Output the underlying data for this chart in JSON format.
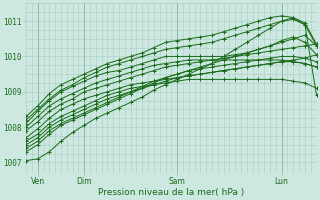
{
  "bg_color": "#cce8e0",
  "grid_color": "#aaccC4",
  "line_color": "#1a6b1a",
  "title": "Pression niveau de la mer( hPa )",
  "ylabel_ticks": [
    1007,
    1008,
    1009,
    1010,
    1011
  ],
  "ylim": [
    1006.7,
    1011.5
  ],
  "xlim": [
    0,
    100
  ],
  "xtick_positions": [
    4,
    20,
    52,
    88
  ],
  "xtick_labels": [
    "Ven",
    "Dim",
    "Sam",
    "Lun"
  ],
  "vlines": [
    4,
    20,
    52,
    88
  ],
  "n_points": 100,
  "series": [
    {
      "points": [
        [
          0,
          1007.05
        ],
        [
          4,
          1007.1
        ],
        [
          8,
          1007.3
        ],
        [
          12,
          1007.6
        ],
        [
          16,
          1007.85
        ],
        [
          20,
          1008.05
        ],
        [
          24,
          1008.25
        ],
        [
          28,
          1008.4
        ],
        [
          32,
          1008.55
        ],
        [
          36,
          1008.7
        ],
        [
          40,
          1008.85
        ],
        [
          44,
          1009.05
        ],
        [
          48,
          1009.2
        ],
        [
          52,
          1009.35
        ],
        [
          56,
          1009.5
        ],
        [
          60,
          1009.65
        ],
        [
          64,
          1009.8
        ],
        [
          68,
          1010.0
        ],
        [
          72,
          1010.2
        ],
        [
          76,
          1010.4
        ],
        [
          80,
          1010.6
        ],
        [
          84,
          1010.8
        ],
        [
          88,
          1011.0
        ],
        [
          92,
          1011.1
        ],
        [
          96,
          1010.9
        ],
        [
          100,
          1008.9
        ]
      ]
    },
    {
      "points": [
        [
          0,
          1007.3
        ],
        [
          4,
          1007.5
        ],
        [
          8,
          1007.8
        ],
        [
          12,
          1008.05
        ],
        [
          16,
          1008.2
        ],
        [
          20,
          1008.35
        ],
        [
          24,
          1008.5
        ],
        [
          28,
          1008.65
        ],
        [
          32,
          1008.8
        ],
        [
          36,
          1008.95
        ],
        [
          40,
          1009.1
        ],
        [
          44,
          1009.25
        ],
        [
          48,
          1009.4
        ],
        [
          52,
          1009.5
        ],
        [
          56,
          1009.6
        ],
        [
          60,
          1009.7
        ],
        [
          64,
          1009.8
        ],
        [
          68,
          1009.9
        ],
        [
          72,
          1010.0
        ],
        [
          76,
          1010.1
        ],
        [
          80,
          1010.2
        ],
        [
          84,
          1010.3
        ],
        [
          88,
          1010.45
        ],
        [
          92,
          1010.55
        ],
        [
          96,
          1010.4
        ],
        [
          100,
          1010.05
        ]
      ]
    },
    {
      "points": [
        [
          0,
          1007.4
        ],
        [
          4,
          1007.6
        ],
        [
          8,
          1007.9
        ],
        [
          12,
          1008.1
        ],
        [
          16,
          1008.25
        ],
        [
          20,
          1008.4
        ],
        [
          24,
          1008.55
        ],
        [
          28,
          1008.7
        ],
        [
          32,
          1008.85
        ],
        [
          36,
          1009.0
        ],
        [
          40,
          1009.15
        ],
        [
          44,
          1009.3
        ],
        [
          48,
          1009.4
        ],
        [
          52,
          1009.5
        ],
        [
          56,
          1009.6
        ],
        [
          60,
          1009.65
        ],
        [
          64,
          1009.7
        ],
        [
          68,
          1009.75
        ],
        [
          72,
          1009.8
        ],
        [
          76,
          1009.85
        ],
        [
          80,
          1009.9
        ],
        [
          84,
          1009.95
        ],
        [
          88,
          1010.0
        ],
        [
          92,
          1010.0
        ],
        [
          96,
          1009.95
        ],
        [
          100,
          1009.85
        ]
      ]
    },
    {
      "points": [
        [
          0,
          1007.5
        ],
        [
          4,
          1007.7
        ],
        [
          8,
          1008.0
        ],
        [
          12,
          1008.2
        ],
        [
          16,
          1008.35
        ],
        [
          20,
          1008.5
        ],
        [
          24,
          1008.65
        ],
        [
          28,
          1008.8
        ],
        [
          32,
          1008.9
        ],
        [
          36,
          1009.0
        ],
        [
          40,
          1009.1
        ],
        [
          44,
          1009.2
        ],
        [
          48,
          1009.3
        ],
        [
          52,
          1009.4
        ],
        [
          56,
          1009.45
        ],
        [
          60,
          1009.5
        ],
        [
          64,
          1009.55
        ],
        [
          68,
          1009.6
        ],
        [
          72,
          1009.65
        ],
        [
          76,
          1009.7
        ],
        [
          80,
          1009.75
        ],
        [
          84,
          1009.8
        ],
        [
          88,
          1009.85
        ],
        [
          92,
          1009.85
        ],
        [
          96,
          1009.8
        ],
        [
          100,
          1009.7
        ]
      ]
    },
    {
      "points": [
        [
          0,
          1007.6
        ],
        [
          4,
          1007.8
        ],
        [
          8,
          1008.1
        ],
        [
          12,
          1008.3
        ],
        [
          16,
          1008.45
        ],
        [
          20,
          1008.6
        ],
        [
          24,
          1008.75
        ],
        [
          28,
          1008.9
        ],
        [
          32,
          1009.0
        ],
        [
          36,
          1009.1
        ],
        [
          40,
          1009.15
        ],
        [
          44,
          1009.2
        ],
        [
          48,
          1009.25
        ],
        [
          52,
          1009.3
        ],
        [
          56,
          1009.35
        ],
        [
          60,
          1009.35
        ],
        [
          64,
          1009.35
        ],
        [
          68,
          1009.35
        ],
        [
          72,
          1009.35
        ],
        [
          76,
          1009.35
        ],
        [
          80,
          1009.35
        ],
        [
          84,
          1009.35
        ],
        [
          88,
          1009.35
        ],
        [
          92,
          1009.3
        ],
        [
          96,
          1009.25
        ],
        [
          100,
          1009.1
        ]
      ]
    },
    {
      "points": [
        [
          0,
          1007.7
        ],
        [
          4,
          1007.95
        ],
        [
          8,
          1008.25
        ],
        [
          12,
          1008.5
        ],
        [
          16,
          1008.65
        ],
        [
          20,
          1008.8
        ],
        [
          24,
          1008.9
        ],
        [
          28,
          1009.0
        ],
        [
          32,
          1009.1
        ],
        [
          36,
          1009.2
        ],
        [
          40,
          1009.25
        ],
        [
          44,
          1009.3
        ],
        [
          48,
          1009.35
        ],
        [
          52,
          1009.4
        ],
        [
          56,
          1009.45
        ],
        [
          60,
          1009.5
        ],
        [
          64,
          1009.55
        ],
        [
          68,
          1009.6
        ],
        [
          72,
          1009.65
        ],
        [
          76,
          1009.7
        ],
        [
          80,
          1009.75
        ],
        [
          84,
          1009.8
        ],
        [
          88,
          1009.85
        ],
        [
          92,
          1009.9
        ],
        [
          96,
          1009.95
        ],
        [
          100,
          1010.05
        ]
      ]
    },
    {
      "points": [
        [
          0,
          1007.9
        ],
        [
          4,
          1008.15
        ],
        [
          8,
          1008.45
        ],
        [
          12,
          1008.65
        ],
        [
          16,
          1008.8
        ],
        [
          20,
          1009.0
        ],
        [
          24,
          1009.1
        ],
        [
          28,
          1009.2
        ],
        [
          32,
          1009.3
        ],
        [
          36,
          1009.4
        ],
        [
          40,
          1009.5
        ],
        [
          44,
          1009.6
        ],
        [
          48,
          1009.7
        ],
        [
          52,
          1009.75
        ],
        [
          56,
          1009.8
        ],
        [
          60,
          1009.85
        ],
        [
          64,
          1009.9
        ],
        [
          68,
          1009.95
        ],
        [
          72,
          1010.0
        ],
        [
          76,
          1010.05
        ],
        [
          80,
          1010.1
        ],
        [
          84,
          1010.15
        ],
        [
          88,
          1010.2
        ],
        [
          92,
          1010.25
        ],
        [
          96,
          1010.3
        ],
        [
          100,
          1010.35
        ]
      ]
    },
    {
      "points": [
        [
          0,
          1008.0
        ],
        [
          4,
          1008.3
        ],
        [
          8,
          1008.6
        ],
        [
          12,
          1008.8
        ],
        [
          16,
          1008.95
        ],
        [
          20,
          1009.1
        ],
        [
          24,
          1009.25
        ],
        [
          28,
          1009.35
        ],
        [
          32,
          1009.45
        ],
        [
          36,
          1009.55
        ],
        [
          40,
          1009.65
        ],
        [
          44,
          1009.75
        ],
        [
          48,
          1009.8
        ],
        [
          52,
          1009.85
        ],
        [
          56,
          1009.9
        ],
        [
          60,
          1009.9
        ],
        [
          64,
          1009.9
        ],
        [
          68,
          1009.9
        ],
        [
          72,
          1009.9
        ],
        [
          76,
          1009.9
        ],
        [
          80,
          1009.9
        ],
        [
          84,
          1009.9
        ],
        [
          88,
          1009.9
        ],
        [
          92,
          1009.85
        ],
        [
          96,
          1009.8
        ],
        [
          100,
          1009.7
        ]
      ]
    },
    {
      "points": [
        [
          0,
          1008.1
        ],
        [
          4,
          1008.45
        ],
        [
          8,
          1008.75
        ],
        [
          12,
          1009.0
        ],
        [
          16,
          1009.15
        ],
        [
          20,
          1009.3
        ],
        [
          24,
          1009.45
        ],
        [
          28,
          1009.55
        ],
        [
          32,
          1009.6
        ],
        [
          36,
          1009.7
        ],
        [
          40,
          1009.8
        ],
        [
          44,
          1009.9
        ],
        [
          48,
          1010.0
        ],
        [
          52,
          1010.0
        ],
        [
          56,
          1010.0
        ],
        [
          60,
          1010.0
        ],
        [
          64,
          1010.0
        ],
        [
          68,
          1010.0
        ],
        [
          72,
          1010.05
        ],
        [
          76,
          1010.1
        ],
        [
          80,
          1010.2
        ],
        [
          84,
          1010.3
        ],
        [
          88,
          1010.4
        ],
        [
          92,
          1010.5
        ],
        [
          96,
          1010.6
        ],
        [
          100,
          1010.3
        ]
      ]
    },
    {
      "points": [
        [
          0,
          1008.2
        ],
        [
          4,
          1008.5
        ],
        [
          8,
          1008.8
        ],
        [
          12,
          1009.05
        ],
        [
          16,
          1009.2
        ],
        [
          20,
          1009.4
        ],
        [
          24,
          1009.55
        ],
        [
          28,
          1009.7
        ],
        [
          32,
          1009.8
        ],
        [
          36,
          1009.9
        ],
        [
          40,
          1010.0
        ],
        [
          44,
          1010.1
        ],
        [
          48,
          1010.2
        ],
        [
          52,
          1010.25
        ],
        [
          56,
          1010.3
        ],
        [
          60,
          1010.35
        ],
        [
          64,
          1010.4
        ],
        [
          68,
          1010.5
        ],
        [
          72,
          1010.6
        ],
        [
          76,
          1010.7
        ],
        [
          80,
          1010.8
        ],
        [
          84,
          1010.9
        ],
        [
          88,
          1011.0
        ],
        [
          92,
          1011.05
        ],
        [
          96,
          1010.9
        ],
        [
          100,
          1010.3
        ]
      ]
    },
    {
      "points": [
        [
          0,
          1008.3
        ],
        [
          4,
          1008.6
        ],
        [
          8,
          1008.95
        ],
        [
          12,
          1009.2
        ],
        [
          16,
          1009.35
        ],
        [
          20,
          1009.5
        ],
        [
          24,
          1009.65
        ],
        [
          28,
          1009.8
        ],
        [
          32,
          1009.9
        ],
        [
          36,
          1010.0
        ],
        [
          40,
          1010.1
        ],
        [
          44,
          1010.25
        ],
        [
          48,
          1010.4
        ],
        [
          52,
          1010.45
        ],
        [
          56,
          1010.5
        ],
        [
          60,
          1010.55
        ],
        [
          64,
          1010.6
        ],
        [
          68,
          1010.7
        ],
        [
          72,
          1010.8
        ],
        [
          76,
          1010.9
        ],
        [
          80,
          1011.0
        ],
        [
          84,
          1011.1
        ],
        [
          88,
          1011.15
        ],
        [
          92,
          1011.1
        ],
        [
          96,
          1010.95
        ],
        [
          100,
          1010.35
        ]
      ]
    }
  ]
}
